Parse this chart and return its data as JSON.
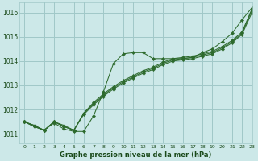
{
  "title": "Graphe pression niveau de la mer (hPa)",
  "bg_color": "#cce8e8",
  "grid_color": "#a0c8c8",
  "line_color": "#2d6a2d",
  "text_color": "#1a4a1a",
  "xlim": [
    -0.5,
    23
  ],
  "ylim": [
    1010.6,
    1016.4
  ],
  "yticks": [
    1011,
    1012,
    1013,
    1014,
    1015,
    1016
  ],
  "xtick_labels": [
    "0",
    "1",
    "2",
    "3",
    "4",
    "5",
    "6",
    "7",
    "8",
    "9",
    "10",
    "11",
    "12",
    "13",
    "14",
    "15",
    "16",
    "17",
    "18",
    "19",
    "20",
    "21",
    "22",
    "23"
  ],
  "series": [
    [
      1011.5,
      1011.35,
      1011.15,
      1011.45,
      1011.2,
      1011.1,
      1011.1,
      1011.75,
      1012.75,
      1013.9,
      1014.3,
      1014.35,
      1014.35,
      1014.1,
      1014.1,
      1014.1,
      1014.1,
      1014.15,
      1014.35,
      1014.5,
      1014.8,
      1015.15,
      1015.7,
      1016.2
    ],
    [
      1011.5,
      1011.35,
      1011.15,
      1011.5,
      1011.3,
      1011.15,
      1011.8,
      1012.2,
      1012.55,
      1012.85,
      1013.1,
      1013.3,
      1013.5,
      1013.65,
      1013.85,
      1014.0,
      1014.05,
      1014.1,
      1014.2,
      1014.3,
      1014.5,
      1014.75,
      1015.1,
      1016.0
    ],
    [
      1011.5,
      1011.3,
      1011.15,
      1011.5,
      1011.35,
      1011.15,
      1011.85,
      1012.25,
      1012.6,
      1012.9,
      1013.15,
      1013.35,
      1013.55,
      1013.7,
      1013.9,
      1014.05,
      1014.1,
      1014.15,
      1014.25,
      1014.35,
      1014.55,
      1014.8,
      1015.15,
      1016.1
    ],
    [
      1011.5,
      1011.3,
      1011.15,
      1011.5,
      1011.3,
      1011.15,
      1011.85,
      1012.3,
      1012.65,
      1012.95,
      1013.2,
      1013.4,
      1013.6,
      1013.75,
      1013.95,
      1014.1,
      1014.15,
      1014.2,
      1014.3,
      1014.4,
      1014.6,
      1014.85,
      1015.2,
      1016.15
    ]
  ]
}
